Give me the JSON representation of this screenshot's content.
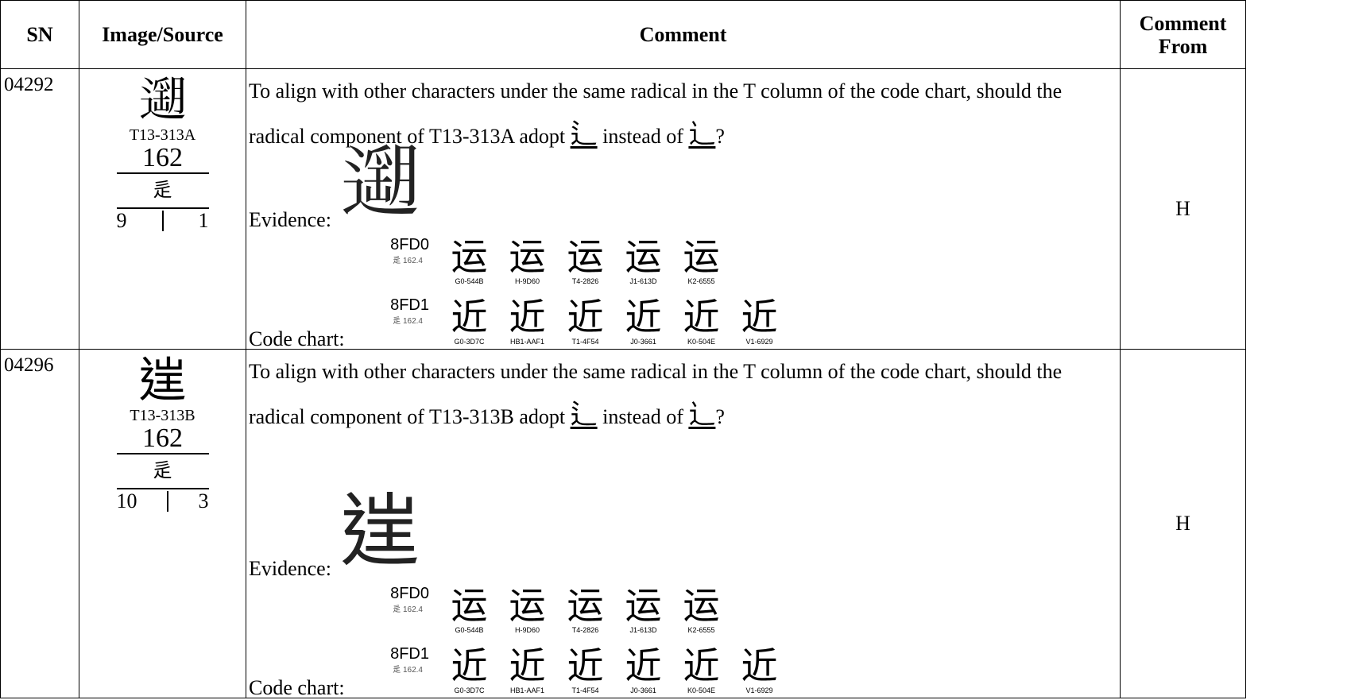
{
  "header": {
    "columns": [
      "SN",
      "Image/Source",
      "Comment",
      "Comment From"
    ]
  },
  "rows": [
    {
      "sn": "04292",
      "glyph": "𨗽",
      "source": "T13-313A",
      "radical": "162",
      "radical_char": "辵",
      "strokes_left": "9",
      "strokes_right": "1",
      "comment": {
        "text_before": "To align with other characters under the same radical in the T column of the code chart, should the radical component of T13-313A adopt",
        "proposed": "⻍",
        "text_middle": "instead of",
        "current": "⻌",
        "text_after": "?"
      },
      "evidence_label": "Evidence:",
      "evidence_glyph": "𨗽",
      "code_chart_label": "Code chart:",
      "code_chart": [
        {
          "code": "8FD0",
          "radical_info": "辵 162.4",
          "glyphs": [
            {
              "char": "运",
              "source": "G0-544B"
            },
            {
              "char": "运",
              "source": "H-9D60"
            },
            {
              "char": "运",
              "source": "T4-2826"
            },
            {
              "char": "运",
              "source": "J1-613D"
            },
            {
              "char": "运",
              "source": "K2-6555"
            }
          ]
        },
        {
          "code": "8FD1",
          "radical_info": "辵 162.4",
          "glyphs": [
            {
              "char": "近",
              "source": "G0-3D7C"
            },
            {
              "char": "近",
              "source": "HB1-AAF1"
            },
            {
              "char": "近",
              "source": "T1-4F54"
            },
            {
              "char": "近",
              "source": "J0-3661"
            },
            {
              "char": "近",
              "source": "K0-504E"
            },
            {
              "char": "近",
              "source": "V1-6929"
            }
          ]
        }
      ],
      "comment_from": "H"
    },
    {
      "sn": "04296",
      "glyph": "𨓏",
      "source": "T13-313B",
      "radical": "162",
      "radical_char": "辵",
      "strokes_left": "10",
      "strokes_right": "3",
      "comment": {
        "text_before": "To align with other characters under the same radical in the T column of the code chart, should the radical component of T13-313B adopt",
        "proposed": "⻍",
        "text_middle": "instead of",
        "current": "⻌",
        "text_after": "?"
      },
      "evidence_label": "Evidence:",
      "evidence_glyph": "𨓏",
      "code_chart_label": "Code chart:",
      "code_chart": [
        {
          "code": "8FD0",
          "radical_info": "辵 162.4",
          "glyphs": [
            {
              "char": "运",
              "source": "G0-544B"
            },
            {
              "char": "运",
              "source": "H-9D60"
            },
            {
              "char": "运",
              "source": "T4-2826"
            },
            {
              "char": "运",
              "source": "J1-613D"
            },
            {
              "char": "运",
              "source": "K2-6555"
            }
          ]
        },
        {
          "code": "8FD1",
          "radical_info": "辵 162.4",
          "glyphs": [
            {
              "char": "近",
              "source": "G0-3D7C"
            },
            {
              "char": "近",
              "source": "HB1-AAF1"
            },
            {
              "char": "近",
              "source": "T1-4F54"
            },
            {
              "char": "近",
              "source": "J0-3661"
            },
            {
              "char": "近",
              "source": "K0-504E"
            },
            {
              "char": "近",
              "source": "V1-6929"
            }
          ]
        }
      ],
      "comment_from": "H"
    }
  ]
}
